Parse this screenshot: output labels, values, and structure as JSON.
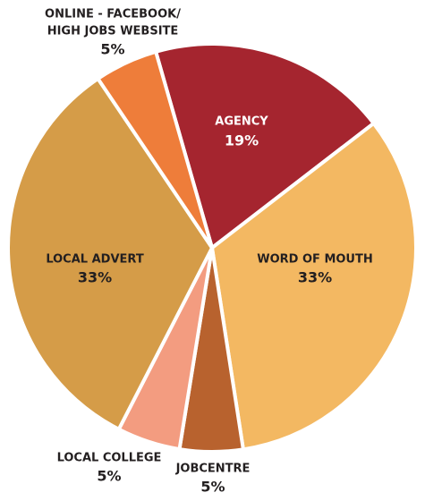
{
  "chart_data": {
    "type": "pie",
    "categories": [
      [
        "AGENCY"
      ],
      [
        "WORD OF MOUTH"
      ],
      [
        "JOBCENTRE"
      ],
      [
        "LOCAL COLLEGE"
      ],
      [
        "LOCAL ADVERT"
      ],
      [
        "ONLINE - FACEBOOK/",
        "HIGH JOBS WEBSITE"
      ]
    ],
    "values": [
      19,
      33,
      5,
      5,
      33,
      5
    ],
    "value_labels": [
      "19%",
      "33%",
      "5%",
      "5%",
      "33%",
      "5%"
    ],
    "colors": [
      "#a5252f",
      "#f3b862",
      "#b8622e",
      "#f39c80",
      "#d59c48",
      "#ee7d3a"
    ]
  }
}
